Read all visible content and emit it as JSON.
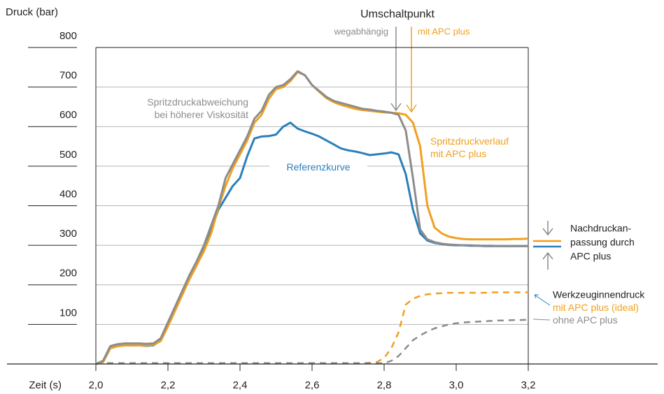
{
  "chart_data": {
    "type": "line",
    "ylabel": "Druck (bar)",
    "xlabel": "Zeit (s)",
    "xlim": [
      2.0,
      3.2
    ],
    "xticks": [
      {
        "value": 2.0,
        "label": "2,0"
      },
      {
        "value": 2.2,
        "label": "2,2"
      },
      {
        "value": 2.4,
        "label": "2,4"
      },
      {
        "value": 2.6,
        "label": "2,6"
      },
      {
        "value": 2.8,
        "label": "2,8"
      },
      {
        "value": 3.0,
        "label": "3,0"
      },
      {
        "value": 3.2,
        "label": "3,2"
      }
    ],
    "ylim": [
      0,
      800
    ],
    "yticks": [
      100,
      200,
      300,
      400,
      500,
      600,
      700,
      800
    ],
    "grid": true,
    "x": [
      2.0,
      2.02,
      2.04,
      2.06,
      2.08,
      2.1,
      2.12,
      2.14,
      2.16,
      2.18,
      2.2,
      2.22,
      2.24,
      2.26,
      2.28,
      2.3,
      2.32,
      2.34,
      2.36,
      2.38,
      2.4,
      2.42,
      2.44,
      2.46,
      2.48,
      2.5,
      2.52,
      2.54,
      2.56,
      2.58,
      2.6,
      2.62,
      2.64,
      2.66,
      2.68,
      2.7,
      2.72,
      2.74,
      2.76,
      2.78,
      2.8,
      2.82,
      2.84,
      2.86,
      2.88,
      2.9,
      2.92,
      2.94,
      2.96,
      2.98,
      3.0,
      3.02,
      3.04,
      3.06,
      3.08,
      3.1,
      3.12,
      3.14,
      3.16,
      3.18,
      3.2
    ],
    "series": [
      {
        "name": "Spritzdruckabweichung bei höherer Viskosität",
        "color": "#8c8c8c",
        "dashed": false,
        "values": [
          0,
          8,
          45,
          50,
          52,
          52,
          52,
          51,
          52,
          65,
          105,
          145,
          185,
          225,
          260,
          300,
          350,
          400,
          470,
          505,
          540,
          575,
          620,
          640,
          680,
          700,
          705,
          720,
          740,
          730,
          705,
          690,
          675,
          665,
          660,
          655,
          650,
          645,
          643,
          640,
          638,
          635,
          630,
          590,
          470,
          340,
          315,
          308,
          304,
          302,
          301,
          300,
          300,
          299,
          299,
          299,
          298,
          298,
          298,
          298,
          298
        ]
      },
      {
        "name": "Referenzkurve",
        "color": "#2a7fba",
        "dashed": false,
        "values": [
          0,
          5,
          40,
          45,
          47,
          47,
          47,
          46,
          47,
          60,
          100,
          140,
          180,
          215,
          250,
          290,
          340,
          390,
          420,
          450,
          470,
          525,
          570,
          575,
          576,
          580,
          600,
          610,
          595,
          588,
          582,
          575,
          565,
          555,
          545,
          540,
          537,
          533,
          528,
          530,
          532,
          535,
          530,
          480,
          390,
          330,
          312,
          306,
          303,
          301,
          300,
          300,
          299,
          299,
          298,
          298,
          298,
          298,
          298,
          298,
          298
        ]
      },
      {
        "name": "Spritzdruckverlauf mit APC plus",
        "color": "#f0a01e",
        "dashed": false,
        "values": [
          0,
          5,
          40,
          45,
          47,
          47,
          47,
          47,
          48,
          58,
          95,
          135,
          175,
          215,
          250,
          285,
          330,
          395,
          450,
          495,
          530,
          565,
          610,
          630,
          670,
          695,
          700,
          715,
          738,
          730,
          705,
          688,
          672,
          662,
          655,
          650,
          645,
          642,
          640,
          638,
          636,
          635,
          634,
          630,
          610,
          550,
          400,
          345,
          330,
          322,
          318,
          316,
          315,
          315,
          315,
          315,
          315,
          315,
          316,
          316,
          317
        ]
      },
      {
        "name": "mit APC plus (ideal)",
        "color": "#f0a01e",
        "dashed": true,
        "values": [
          2,
          2,
          2,
          2,
          2,
          2,
          2,
          2,
          2,
          2,
          2,
          2,
          2,
          2,
          2,
          2,
          2,
          2,
          2,
          2,
          2,
          2,
          2,
          2,
          2,
          2,
          2,
          2,
          2,
          2,
          2,
          2,
          2,
          2,
          2,
          2,
          2,
          2,
          3,
          5,
          15,
          40,
          80,
          150,
          165,
          172,
          176,
          178,
          179,
          180,
          180,
          180,
          180,
          180,
          180,
          181,
          181,
          181,
          181,
          181,
          181
        ]
      },
      {
        "name": "ohne APC plus",
        "color": "#8c8c8c",
        "dashed": true,
        "values": [
          2,
          2,
          2,
          2,
          2,
          2,
          2,
          2,
          2,
          2,
          2,
          2,
          2,
          2,
          2,
          2,
          2,
          2,
          2,
          2,
          2,
          2,
          2,
          2,
          2,
          2,
          2,
          2,
          2,
          2,
          2,
          2,
          2,
          2,
          2,
          2,
          2,
          2,
          2,
          2,
          2,
          8,
          20,
          40,
          60,
          72,
          82,
          90,
          95,
          100,
          103,
          105,
          106,
          107,
          108,
          109,
          110,
          110,
          111,
          111,
          112
        ]
      }
    ],
    "annotations": {
      "switch_point": "Umschaltpunkt",
      "travel": "wegabhängig",
      "apc": "mit APC plus",
      "cavity": "Werkzeuginnendruck",
      "holding": [
        "Nachdruckan-",
        "passung durch",
        "APC plus"
      ]
    }
  }
}
